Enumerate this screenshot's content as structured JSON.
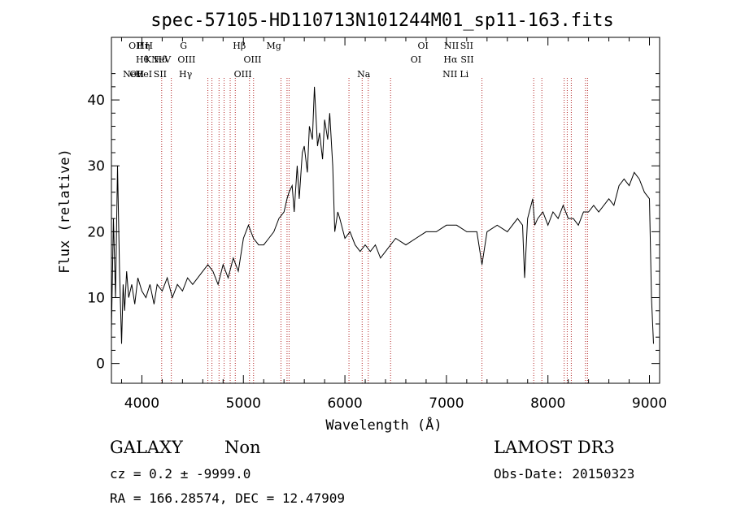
{
  "chart_data": {
    "type": "line",
    "title": "spec-57105-HD110713N101244M01_sp11-163.fits",
    "xlabel": "Wavelength (Å)",
    "ylabel": "Flux (relative)",
    "xlim": [
      3700,
      9100
    ],
    "ylim": [
      -3,
      49.5
    ],
    "x_ticks": [
      4000,
      5000,
      6000,
      7000,
      8000,
      9000
    ],
    "y_ticks": [
      0,
      10,
      20,
      30,
      40
    ],
    "x_tick_labels": [
      "4000",
      "5000",
      "6000",
      "7000",
      "8000",
      "9000"
    ],
    "y_tick_labels": [
      "0",
      "10",
      "20",
      "30",
      "40"
    ],
    "series": [
      {
        "name": "flux",
        "x": [
          3700,
          3720,
          3740,
          3760,
          3780,
          3800,
          3815,
          3830,
          3850,
          3870,
          3900,
          3930,
          3960,
          4000,
          4040,
          4080,
          4120,
          4150,
          4200,
          4250,
          4300,
          4350,
          4400,
          4450,
          4500,
          4550,
          4600,
          4650,
          4700,
          4750,
          4800,
          4850,
          4900,
          4950,
          5000,
          5050,
          5100,
          5150,
          5200,
          5250,
          5300,
          5350,
          5400,
          5430,
          5450,
          5480,
          5500,
          5530,
          5550,
          5580,
          5600,
          5630,
          5650,
          5680,
          5700,
          5730,
          5750,
          5780,
          5800,
          5830,
          5850,
          5880,
          5900,
          5930,
          5950,
          6000,
          6050,
          6100,
          6150,
          6200,
          6250,
          6300,
          6350,
          6400,
          6450,
          6500,
          6600,
          6700,
          6800,
          6900,
          7000,
          7100,
          7200,
          7300,
          7350,
          7400,
          7500,
          7600,
          7700,
          7750,
          7770,
          7800,
          7850,
          7870,
          7900,
          7950,
          8000,
          8050,
          8100,
          8150,
          8200,
          8250,
          8300,
          8350,
          8400,
          8450,
          8500,
          8550,
          8600,
          8650,
          8700,
          8750,
          8800,
          8850,
          8900,
          8950,
          9000,
          9020,
          9040
        ],
        "values": [
          5,
          22,
          10,
          30,
          14,
          3,
          12,
          8,
          14,
          10,
          12,
          9,
          13,
          11,
          10,
          12,
          9,
          12,
          11,
          13,
          10,
          12,
          11,
          13,
          12,
          13,
          14,
          15,
          14,
          12,
          15,
          13,
          16,
          14,
          19,
          21,
          19,
          18,
          18,
          19,
          20,
          22,
          23,
          25,
          26,
          27,
          23,
          30,
          25,
          32,
          33,
          29,
          36,
          34,
          42,
          33,
          35,
          31,
          37,
          34,
          38,
          30,
          20,
          23,
          22,
          19,
          20,
          18,
          17,
          18,
          17,
          18,
          16,
          17,
          18,
          19,
          18,
          19,
          20,
          20,
          21,
          21,
          20,
          20,
          15,
          20,
          21,
          20,
          22,
          21,
          13,
          22,
          25,
          21,
          22,
          23,
          21,
          23,
          22,
          24,
          22,
          22,
          21,
          23,
          23,
          24,
          23,
          24,
          25,
          24,
          27,
          28,
          27,
          29,
          28,
          26,
          25,
          10,
          3
        ]
      }
    ],
    "line_labels": [
      {
        "name": "NeV",
        "x": 3910,
        "row": 3
      },
      {
        "name": "NeV",
        "x": 4190,
        "row": 1
      },
      {
        "name": "OII",
        "x": 3940,
        "row": 0
      },
      {
        "name": "OII",
        "x": 3950,
        "row": 2
      },
      {
        "name": "Hη",
        "x": 4015,
        "row": 0
      },
      {
        "name": "Hθ",
        "x": 4005,
        "row": 1
      },
      {
        "name": "HeI",
        "x": 4020,
        "row": 2
      },
      {
        "name": "H",
        "x": 4070,
        "row": 0
      },
      {
        "name": "K",
        "x": 4060,
        "row": 1
      },
      {
        "name": "Hδ",
        "x": 4185,
        "row": 1
      },
      {
        "name": "SII",
        "x": 4180,
        "row": 2
      },
      {
        "name": "G",
        "x": 4410,
        "row": 0
      },
      {
        "name": "OIII",
        "x": 4440,
        "row": 1
      },
      {
        "name": "Hγ",
        "x": 4430,
        "row": 2
      },
      {
        "name": "Hβ",
        "x": 4960,
        "row": 0
      },
      {
        "name": "OIII",
        "x": 5090,
        "row": 1
      },
      {
        "name": "OIII",
        "x": 4995,
        "row": 2
      },
      {
        "name": "Mg",
        "x": 5300,
        "row": 0
      },
      {
        "name": "Na",
        "x": 6185,
        "row": 2
      },
      {
        "name": "OI",
        "x": 6770,
        "row": 0
      },
      {
        "name": "OI",
        "x": 6700,
        "row": 1
      },
      {
        "name": "NII",
        "x": 7050,
        "row": 0
      },
      {
        "name": "Hα",
        "x": 7040,
        "row": 1
      },
      {
        "name": "NII",
        "x": 7035,
        "row": 2
      },
      {
        "name": "SII",
        "x": 7200,
        "row": 0
      },
      {
        "name": "SII",
        "x": 7205,
        "row": 1
      },
      {
        "name": "Li",
        "x": 7175,
        "row": 2
      }
    ],
    "line_markers_x": [
      4195,
      4290,
      4650,
      4690,
      4760,
      4810,
      4870,
      4920,
      5060,
      5100,
      5370,
      5430,
      5450,
      6040,
      6170,
      6230,
      6450,
      7350,
      7860,
      7940,
      8160,
      8190,
      8230,
      8370,
      8390
    ]
  },
  "info": {
    "class": "GALAXY",
    "subclass": "Non",
    "survey": "LAMOST DR3",
    "cz": "cz = 0.2 ± -9999.0",
    "obs_date": "Obs-Date: 20150323",
    "radec": "RA = 166.28574, DEC =  12.47909"
  }
}
